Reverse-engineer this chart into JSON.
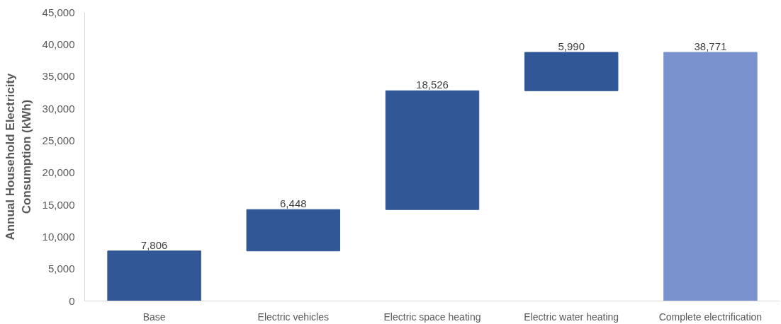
{
  "chart_data": {
    "type": "bar",
    "ylabel": "Annual Household Electricity Consumption (kWh)",
    "categories": [
      "Base",
      "Electric vehicles",
      "Electric space heating",
      "Electric water heating",
      "Complete electrification"
    ],
    "values": [
      7806,
      6448,
      18526,
      5990,
      38771
    ],
    "value_labels": [
      "7,806",
      "6,448",
      "18,526",
      "5,990",
      "38,771"
    ],
    "base": [
      0,
      7806,
      14254,
      32780,
      0
    ],
    "colors": [
      "#325797",
      "#325797",
      "#325797",
      "#325797",
      "#7a92ce"
    ],
    "ylim": [
      0,
      45000
    ],
    "yticks": [
      0,
      {
        "value": 5000,
        "label": "5,000"
      },
      {
        "value": 10000,
        "label": "10,000"
      },
      {
        "value": 15000,
        "label": "15,000"
      },
      {
        "value": 20000,
        "label": "20,000"
      },
      {
        "value": 25000,
        "label": "25,000"
      },
      {
        "value": 30000,
        "label": "30,000"
      },
      {
        "value": 35000,
        "label": "35,000"
      },
      {
        "value": 40000,
        "label": "40,000"
      },
      {
        "value": 45000,
        "label": "45,000"
      }
    ],
    "grid": false
  }
}
